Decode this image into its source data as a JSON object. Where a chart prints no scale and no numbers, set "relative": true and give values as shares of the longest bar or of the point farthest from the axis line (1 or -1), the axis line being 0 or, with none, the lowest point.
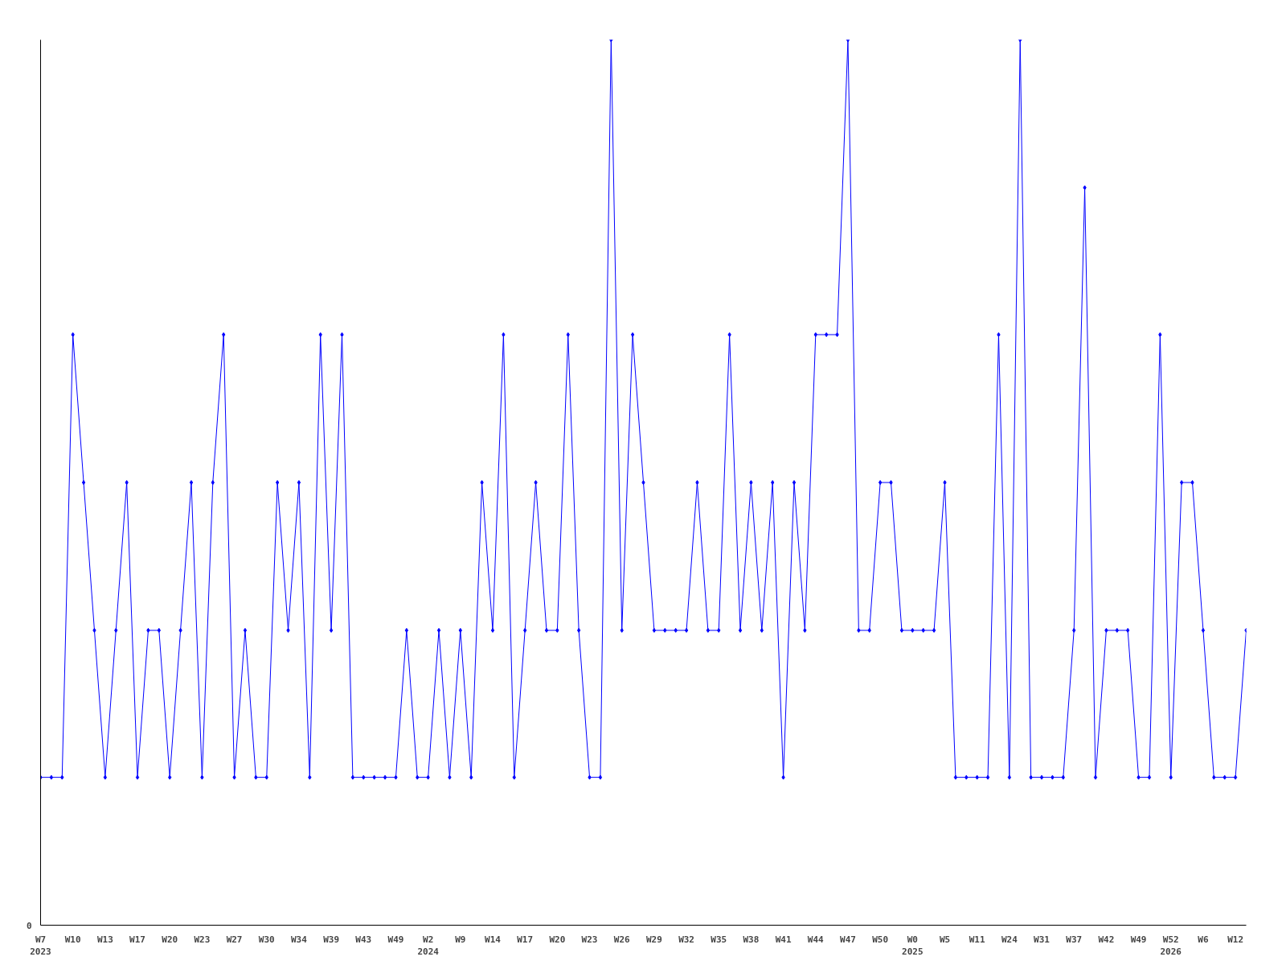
{
  "chart_data": {
    "type": "line",
    "relative": true,
    "color": "#0000ff",
    "marker": "diamond",
    "grid": false,
    "annotations": [
      "0"
    ],
    "categories": [
      "W7\n2023",
      null,
      null,
      "W10",
      null,
      null,
      "W13",
      null,
      null,
      "W17",
      null,
      null,
      "W20",
      null,
      null,
      "W23",
      null,
      null,
      "W27",
      null,
      null,
      "W30",
      null,
      null,
      "W34",
      null,
      null,
      "W39",
      null,
      null,
      "W43",
      null,
      null,
      "W49",
      null,
      null,
      "W2\n2024",
      null,
      null,
      "W9",
      null,
      null,
      "W14",
      null,
      null,
      "W17",
      null,
      null,
      "W20",
      null,
      null,
      "W23",
      null,
      null,
      "W26",
      null,
      null,
      "W29",
      null,
      null,
      "W32",
      null,
      null,
      "W35",
      null,
      null,
      "W38",
      null,
      null,
      "W41",
      null,
      null,
      "W44",
      null,
      null,
      "W47",
      null,
      null,
      "W50",
      null,
      null,
      "W0\n2025",
      null,
      null,
      "W5",
      null,
      null,
      "W11",
      null,
      null,
      "W24",
      null,
      null,
      "W31",
      null,
      null,
      "W37",
      null,
      null,
      "W42",
      null,
      null,
      "W49",
      null,
      null,
      "W52\n2026",
      null,
      null,
      "W6",
      null,
      null,
      "W12",
      null
    ],
    "values": [
      0.167,
      0.167,
      0.167,
      0.667,
      0.5,
      0.333,
      0.167,
      0.333,
      0.5,
      0.167,
      0.333,
      0.333,
      0.167,
      0.333,
      0.5,
      0.167,
      0.5,
      0.667,
      0.167,
      0.333,
      0.167,
      0.167,
      0.5,
      0.333,
      0.5,
      0.167,
      0.667,
      0.333,
      0.667,
      0.167,
      0.167,
      0.167,
      0.167,
      0.167,
      0.333,
      0.167,
      0.167,
      0.333,
      0.167,
      0.333,
      0.167,
      0.5,
      0.333,
      0.667,
      0.167,
      0.333,
      0.5,
      0.333,
      0.333,
      0.667,
      0.333,
      0.167,
      0.167,
      1,
      0.333,
      0.667,
      0.5,
      0.333,
      0.333,
      0.333,
      0.333,
      0.5,
      0.333,
      0.333,
      0.667,
      0.333,
      0.5,
      0.333,
      0.5,
      0.167,
      0.5,
      0.333,
      0.667,
      0.667,
      0.667,
      1,
      0.333,
      0.333,
      0.5,
      0.5,
      0.333,
      0.333,
      0.333,
      0.333,
      0.5,
      0.167,
      0.167,
      0.167,
      0.167,
      0.667,
      0.167,
      1,
      0.167,
      0.167,
      0.167,
      0.167,
      0.333,
      0.833,
      0.167,
      0.333,
      0.333,
      0.333,
      0.167,
      0.167,
      0.667,
      0.167,
      0.5,
      0.5,
      0.333,
      0.167,
      0.167,
      0.167,
      0.333
    ]
  }
}
